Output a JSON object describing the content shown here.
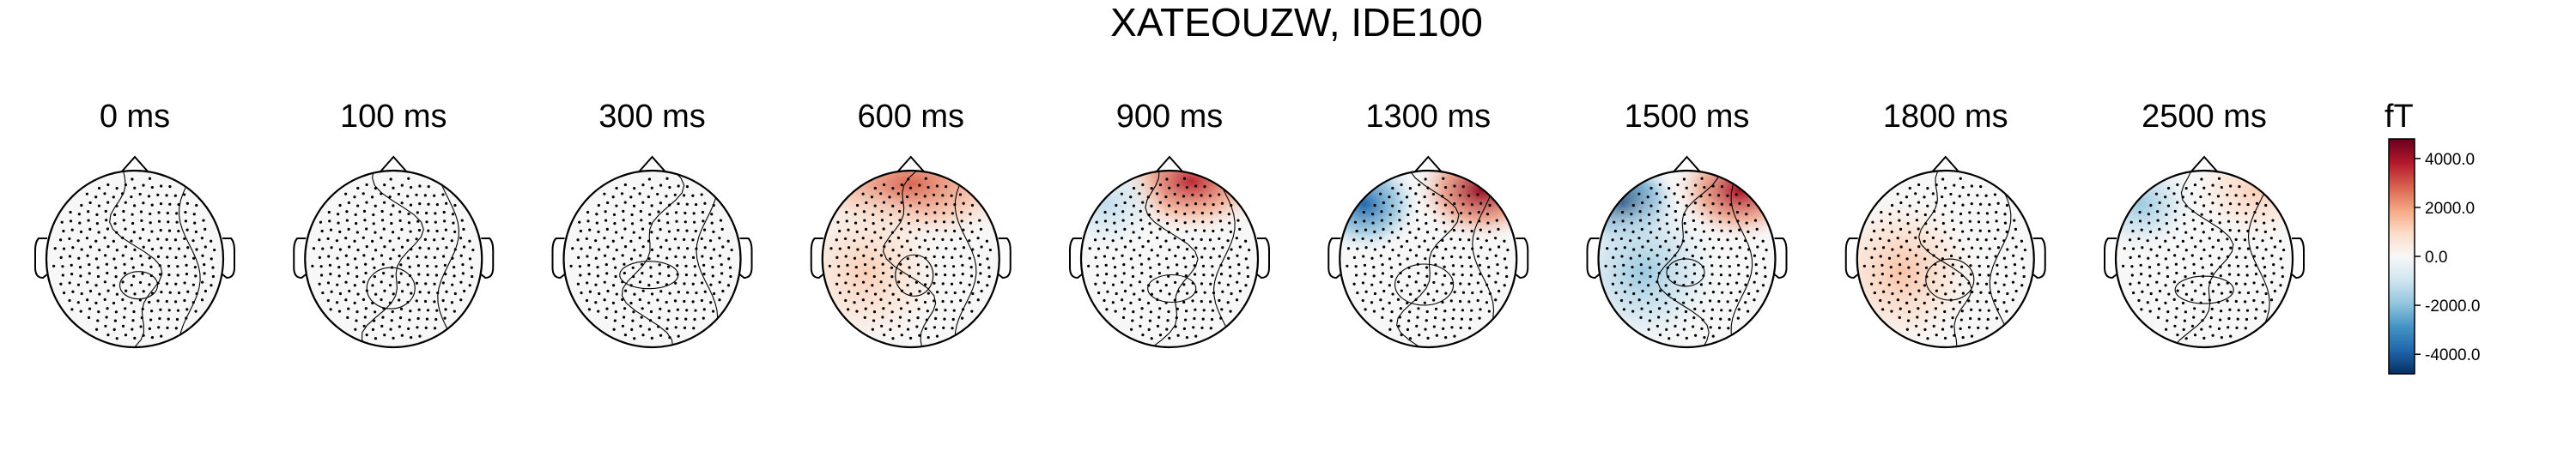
{
  "chart_data": {
    "type": "heatmap",
    "subtype": "topomap-series",
    "title": "XATEOUZW, IDE100",
    "panels": [
      {
        "time_label": "0 ms",
        "sources": []
      },
      {
        "time_label": "100 ms",
        "sources": []
      },
      {
        "time_label": "300 ms",
        "sources": []
      },
      {
        "time_label": "600 ms",
        "sources": [
          {
            "region": "frontal",
            "value": 2800
          },
          {
            "region": "left",
            "value": 1200
          }
        ]
      },
      {
        "time_label": "900 ms",
        "sources": [
          {
            "region": "frontal-right",
            "value": 3600
          },
          {
            "region": "left-frontal",
            "value": -1200
          }
        ]
      },
      {
        "time_label": "1300 ms",
        "sources": [
          {
            "region": "left-frontal",
            "value": -3800
          },
          {
            "region": "right-frontal",
            "value": 4200
          }
        ]
      },
      {
        "time_label": "1500 ms",
        "sources": [
          {
            "region": "left-frontal",
            "value": -4600
          },
          {
            "region": "right-frontal",
            "value": 4000
          },
          {
            "region": "left",
            "value": -1800
          }
        ]
      },
      {
        "time_label": "1800 ms",
        "sources": [
          {
            "region": "left",
            "value": 1400
          }
        ]
      },
      {
        "time_label": "2500 ms",
        "sources": [
          {
            "region": "left-frontal",
            "value": -1800
          },
          {
            "region": "right-frontal",
            "value": 1200
          }
        ]
      }
    ],
    "colorbar": {
      "label": "fT",
      "ticks": [
        "4000.0",
        "2000.0",
        "0.0",
        "-2000.0",
        "-4000.0"
      ],
      "tick_values": [
        4000,
        2000,
        0,
        -2000,
        -4000
      ],
      "range": [
        -4800,
        4800
      ],
      "colormap": "RdBu_r"
    }
  }
}
